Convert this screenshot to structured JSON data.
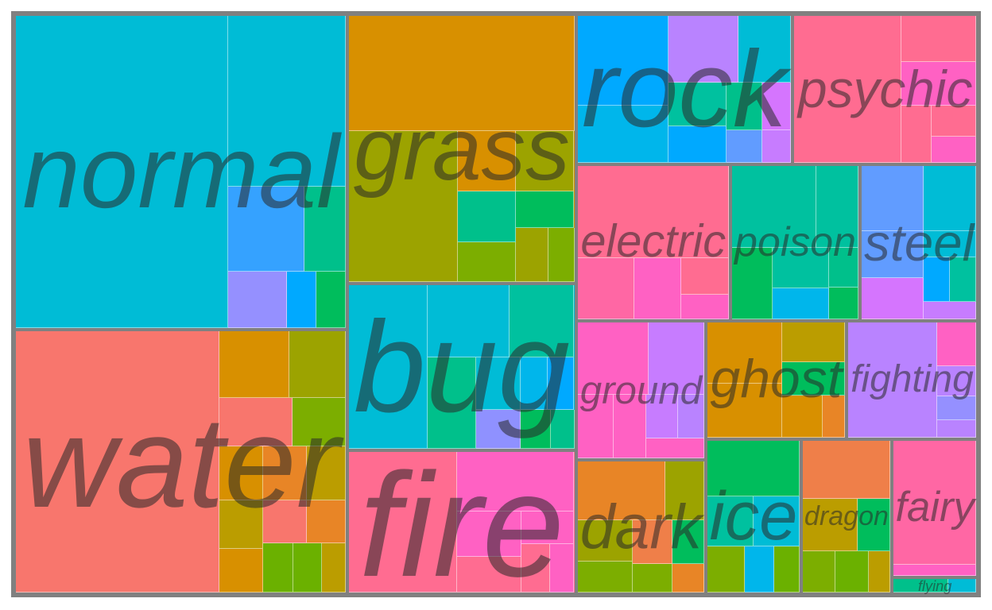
{
  "chart_data": {
    "type": "treemap",
    "title": "",
    "groups": [
      {
        "name": "grass",
        "color": "#D89000",
        "subs": [
          {
            "value": 220,
            "color": "#D89000"
          },
          {
            "value": 140,
            "color": "#9CA300"
          },
          {
            "value": 30,
            "color": "#D89000"
          },
          {
            "value": 30,
            "color": "#9CA300"
          },
          {
            "value": 25,
            "color": "#00C08B"
          },
          {
            "value": 20,
            "color": "#7CAE00"
          },
          {
            "value": 18,
            "color": "#00BD5C"
          },
          {
            "value": 15,
            "color": "#9CA300"
          },
          {
            "value": 12,
            "color": "#7CAE00"
          }
        ]
      },
      {
        "name": "normal",
        "color": "#00BCD6",
        "subs": [
          {
            "value": 560,
            "color": "#00BCD6"
          },
          {
            "value": 170,
            "color": "#00BCD6"
          },
          {
            "value": 55,
            "color": "#35A2FF"
          },
          {
            "value": 30,
            "color": "#00C08B"
          },
          {
            "value": 28,
            "color": "#9590FF"
          },
          {
            "value": 14,
            "color": "#00A9FF"
          },
          {
            "value": 14,
            "color": "#00BD5C"
          }
        ]
      },
      {
        "name": "water",
        "color": "#F8766D",
        "subs": [
          {
            "value": 450,
            "color": "#F8766D"
          },
          {
            "value": 40,
            "color": "#D89000"
          },
          {
            "value": 32,
            "color": "#9CA300"
          },
          {
            "value": 30,
            "color": "#F8766D"
          },
          {
            "value": 22,
            "color": "#7CAE00"
          },
          {
            "value": 20,
            "color": "#D89000"
          },
          {
            "value": 20,
            "color": "#E88526"
          },
          {
            "value": 18,
            "color": "#BB9D00"
          },
          {
            "value": 18,
            "color": "#BB9D00"
          },
          {
            "value": 16,
            "color": "#D89000"
          },
          {
            "value": 16,
            "color": "#F8766D"
          },
          {
            "value": 14,
            "color": "#E88526"
          },
          {
            "value": 13,
            "color": "#6BB100"
          },
          {
            "value": 12,
            "color": "#6BB100"
          },
          {
            "value": 10,
            "color": "#BB9D00"
          }
        ]
      },
      {
        "name": "poison",
        "color": "#00C19F",
        "subs": [
          {
            "value": 60,
            "color": "#00C19F"
          },
          {
            "value": 30,
            "color": "#00C19F"
          },
          {
            "value": 25,
            "color": "#00BD5C"
          },
          {
            "value": 20,
            "color": "#00C19F"
          },
          {
            "value": 15,
            "color": "#00B6EB"
          },
          {
            "value": 10,
            "color": "#00C08B"
          },
          {
            "value": 8,
            "color": "#00BD5C"
          }
        ]
      },
      {
        "name": "ice",
        "color": "#00BD5C",
        "subs": [
          {
            "value": 45,
            "color": "#00BD5C"
          },
          {
            "value": 20,
            "color": "#00C19F"
          },
          {
            "value": 20,
            "color": "#00BCD6"
          },
          {
            "value": 15,
            "color": "#7CAE00"
          },
          {
            "value": 12,
            "color": "#00B6EB"
          },
          {
            "value": 10,
            "color": "#6BB100"
          }
        ]
      },
      {
        "name": "fairy",
        "color": "#FF67A4",
        "subs": [
          {
            "value": 90,
            "color": "#FF67A4"
          },
          {
            "value": 8,
            "color": "#FF61C3"
          }
        ]
      },
      {
        "name": "flying",
        "color": "#00C08B",
        "subs": [
          {
            "value": 8,
            "color": "#00C08B"
          },
          {
            "value": 4,
            "color": "#00BCD6"
          }
        ]
      },
      {
        "name": "dark",
        "color": "#E88526",
        "subs": [
          {
            "value": 45,
            "color": "#E88526"
          },
          {
            "value": 20,
            "color": "#9CA300"
          },
          {
            "value": 20,
            "color": "#9CA300"
          },
          {
            "value": 15,
            "color": "#7CAE00"
          },
          {
            "value": 15,
            "color": "#EF7F49"
          },
          {
            "value": 12,
            "color": "#00BD5C"
          },
          {
            "value": 10,
            "color": "#7CAE00"
          },
          {
            "value": 8,
            "color": "#E88526"
          }
        ]
      },
      {
        "name": "ghost",
        "color": "#D89000",
        "subs": [
          {
            "value": 40,
            "color": "#D89000"
          },
          {
            "value": 35,
            "color": "#D89000"
          },
          {
            "value": 22,
            "color": "#BB9D00"
          },
          {
            "value": 18,
            "color": "#00BD5C"
          },
          {
            "value": 15,
            "color": "#D89000"
          },
          {
            "value": 8,
            "color": "#E88526"
          }
        ]
      },
      {
        "name": "steel",
        "color": "#00BCD6",
        "subs": [
          {
            "value": 35,
            "color": "#619CFF"
          },
          {
            "value": 30,
            "color": "#00BCD6"
          },
          {
            "value": 25,
            "color": "#619CFF"
          },
          {
            "value": 22,
            "color": "#D575FE"
          },
          {
            "value": 12,
            "color": "#00BCD6"
          },
          {
            "value": 10,
            "color": "#00A9FF"
          },
          {
            "value": 10,
            "color": "#00C19F"
          },
          {
            "value": 8,
            "color": "#C77CFF"
          }
        ]
      },
      {
        "name": "ground",
        "color": "#FF61C3",
        "subs": [
          {
            "value": 45,
            "color": "#FF61C3"
          },
          {
            "value": 35,
            "color": "#C77CFF"
          },
          {
            "value": 20,
            "color": "#FF61C3"
          },
          {
            "value": 18,
            "color": "#FF61C3"
          },
          {
            "value": 12,
            "color": "#C77CFF"
          },
          {
            "value": 10,
            "color": "#B983FF"
          },
          {
            "value": 10,
            "color": "#FF61C3"
          }
        ]
      },
      {
        "name": "fighting",
        "color": "#B983FF",
        "subs": [
          {
            "value": 90,
            "color": "#B983FF"
          },
          {
            "value": 15,
            "color": "#FF61C3"
          },
          {
            "value": 10,
            "color": "#B983FF"
          },
          {
            "value": 8,
            "color": "#9590FF"
          },
          {
            "value": 6,
            "color": "#B983FF"
          }
        ]
      },
      {
        "name": "dragon",
        "color": "#EF7F49",
        "subs": [
          {
            "value": 45,
            "color": "#EF7F49"
          },
          {
            "value": 25,
            "color": "#BB9D00"
          },
          {
            "value": 15,
            "color": "#00BD5C"
          },
          {
            "value": 12,
            "color": "#7CAE00"
          },
          {
            "value": 12,
            "color": "#6BB100"
          },
          {
            "value": 8,
            "color": "#BB9D00"
          }
        ]
      },
      {
        "name": "psychic",
        "color": "#FF6C91",
        "subs": [
          {
            "value": 135,
            "color": "#FF6C91"
          },
          {
            "value": 30,
            "color": "#FF6C91"
          },
          {
            "value": 28,
            "color": "#FF61C3"
          },
          {
            "value": 15,
            "color": "#FF6C91"
          },
          {
            "value": 12,
            "color": "#FF6C91"
          },
          {
            "value": 10,
            "color": "#FF61C3"
          }
        ]
      },
      {
        "name": "rock",
        "color": "#00A9FF",
        "subs": [
          {
            "value": 70,
            "color": "#00A9FF"
          },
          {
            "value": 45,
            "color": "#00B6EB"
          },
          {
            "value": 40,
            "color": "#B983FF"
          },
          {
            "value": 30,
            "color": "#00BCD6"
          },
          {
            "value": 22,
            "color": "#00C19F"
          },
          {
            "value": 18,
            "color": "#00A9FF"
          },
          {
            "value": 15,
            "color": "#00C08B"
          },
          {
            "value": 12,
            "color": "#D575FE"
          },
          {
            "value": 10,
            "color": "#619CFF"
          },
          {
            "value": 8,
            "color": "#C77CFF"
          }
        ]
      },
      {
        "name": "electric",
        "color": "#FF6C91",
        "subs": [
          {
            "value": 120,
            "color": "#FF6C91"
          },
          {
            "value": 30,
            "color": "#FF67A4"
          },
          {
            "value": 25,
            "color": "#FF61C3"
          },
          {
            "value": 15,
            "color": "#FF6C91"
          },
          {
            "value": 10,
            "color": "#FF61C3"
          }
        ]
      },
      {
        "name": "bug",
        "color": "#00BCD6",
        "subs": [
          {
            "value": 110,
            "color": "#00BCD6"
          },
          {
            "value": 50,
            "color": "#00BCD6"
          },
          {
            "value": 40,
            "color": "#00C19F"
          },
          {
            "value": 38,
            "color": "#00C08B"
          },
          {
            "value": 20,
            "color": "#00BCD6"
          },
          {
            "value": 15,
            "color": "#8F91FF"
          },
          {
            "value": 12,
            "color": "#00B6EB"
          },
          {
            "value": 12,
            "color": "#00A9FF"
          },
          {
            "value": 10,
            "color": "#00BD5C"
          },
          {
            "value": 8,
            "color": "#00C08B"
          }
        ]
      },
      {
        "name": "fire",
        "color": "#FF6C91",
        "subs": [
          {
            "value": 130,
            "color": "#FF6C91"
          },
          {
            "value": 60,
            "color": "#FF61C3"
          },
          {
            "value": 25,
            "color": "#FF61C3"
          },
          {
            "value": 20,
            "color": "#FF6C91"
          },
          {
            "value": 15,
            "color": "#FF61C3"
          },
          {
            "value": 12,
            "color": "#FF6C91"
          },
          {
            "value": 10,
            "color": "#FF61C3"
          }
        ]
      }
    ]
  }
}
